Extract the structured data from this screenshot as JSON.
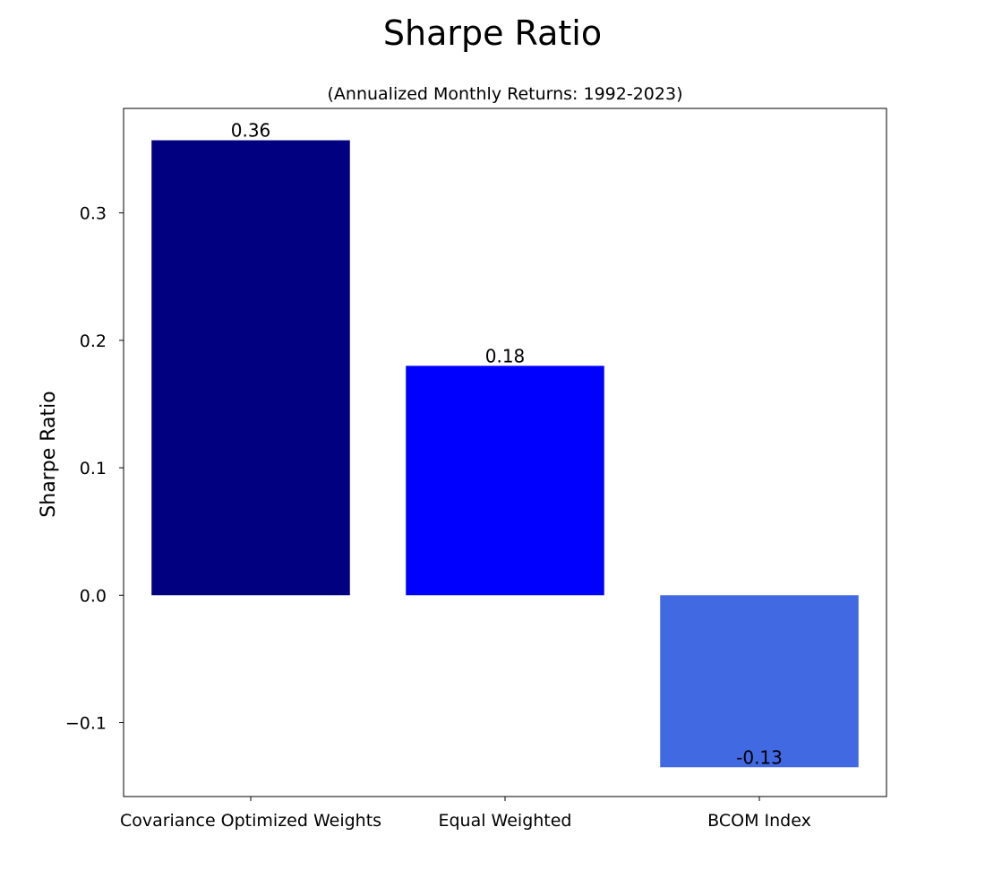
{
  "chart_data": {
    "type": "bar",
    "title": "Sharpe Ratio",
    "subtitle": "(Annualized Monthly Returns: 1992-2023)",
    "xlabel": "",
    "ylabel": "Sharpe Ratio",
    "categories": [
      "Covariance Optimized Weights",
      "Equal Weighted",
      "BCOM Index"
    ],
    "values": [
      0.357,
      0.18,
      -0.135
    ],
    "data_labels": [
      "0.36",
      "0.18",
      "-0.13"
    ],
    "colors": [
      "#000080",
      "#0000ff",
      "#4169e1"
    ],
    "ylim": [
      -0.158,
      0.382
    ],
    "yticks": [
      -0.1,
      0.0,
      0.1,
      0.2,
      0.3
    ],
    "ytick_labels": [
      "−0.1",
      "0.0",
      "0.1",
      "0.2",
      "0.3"
    ],
    "grid": false,
    "legend": "none"
  }
}
